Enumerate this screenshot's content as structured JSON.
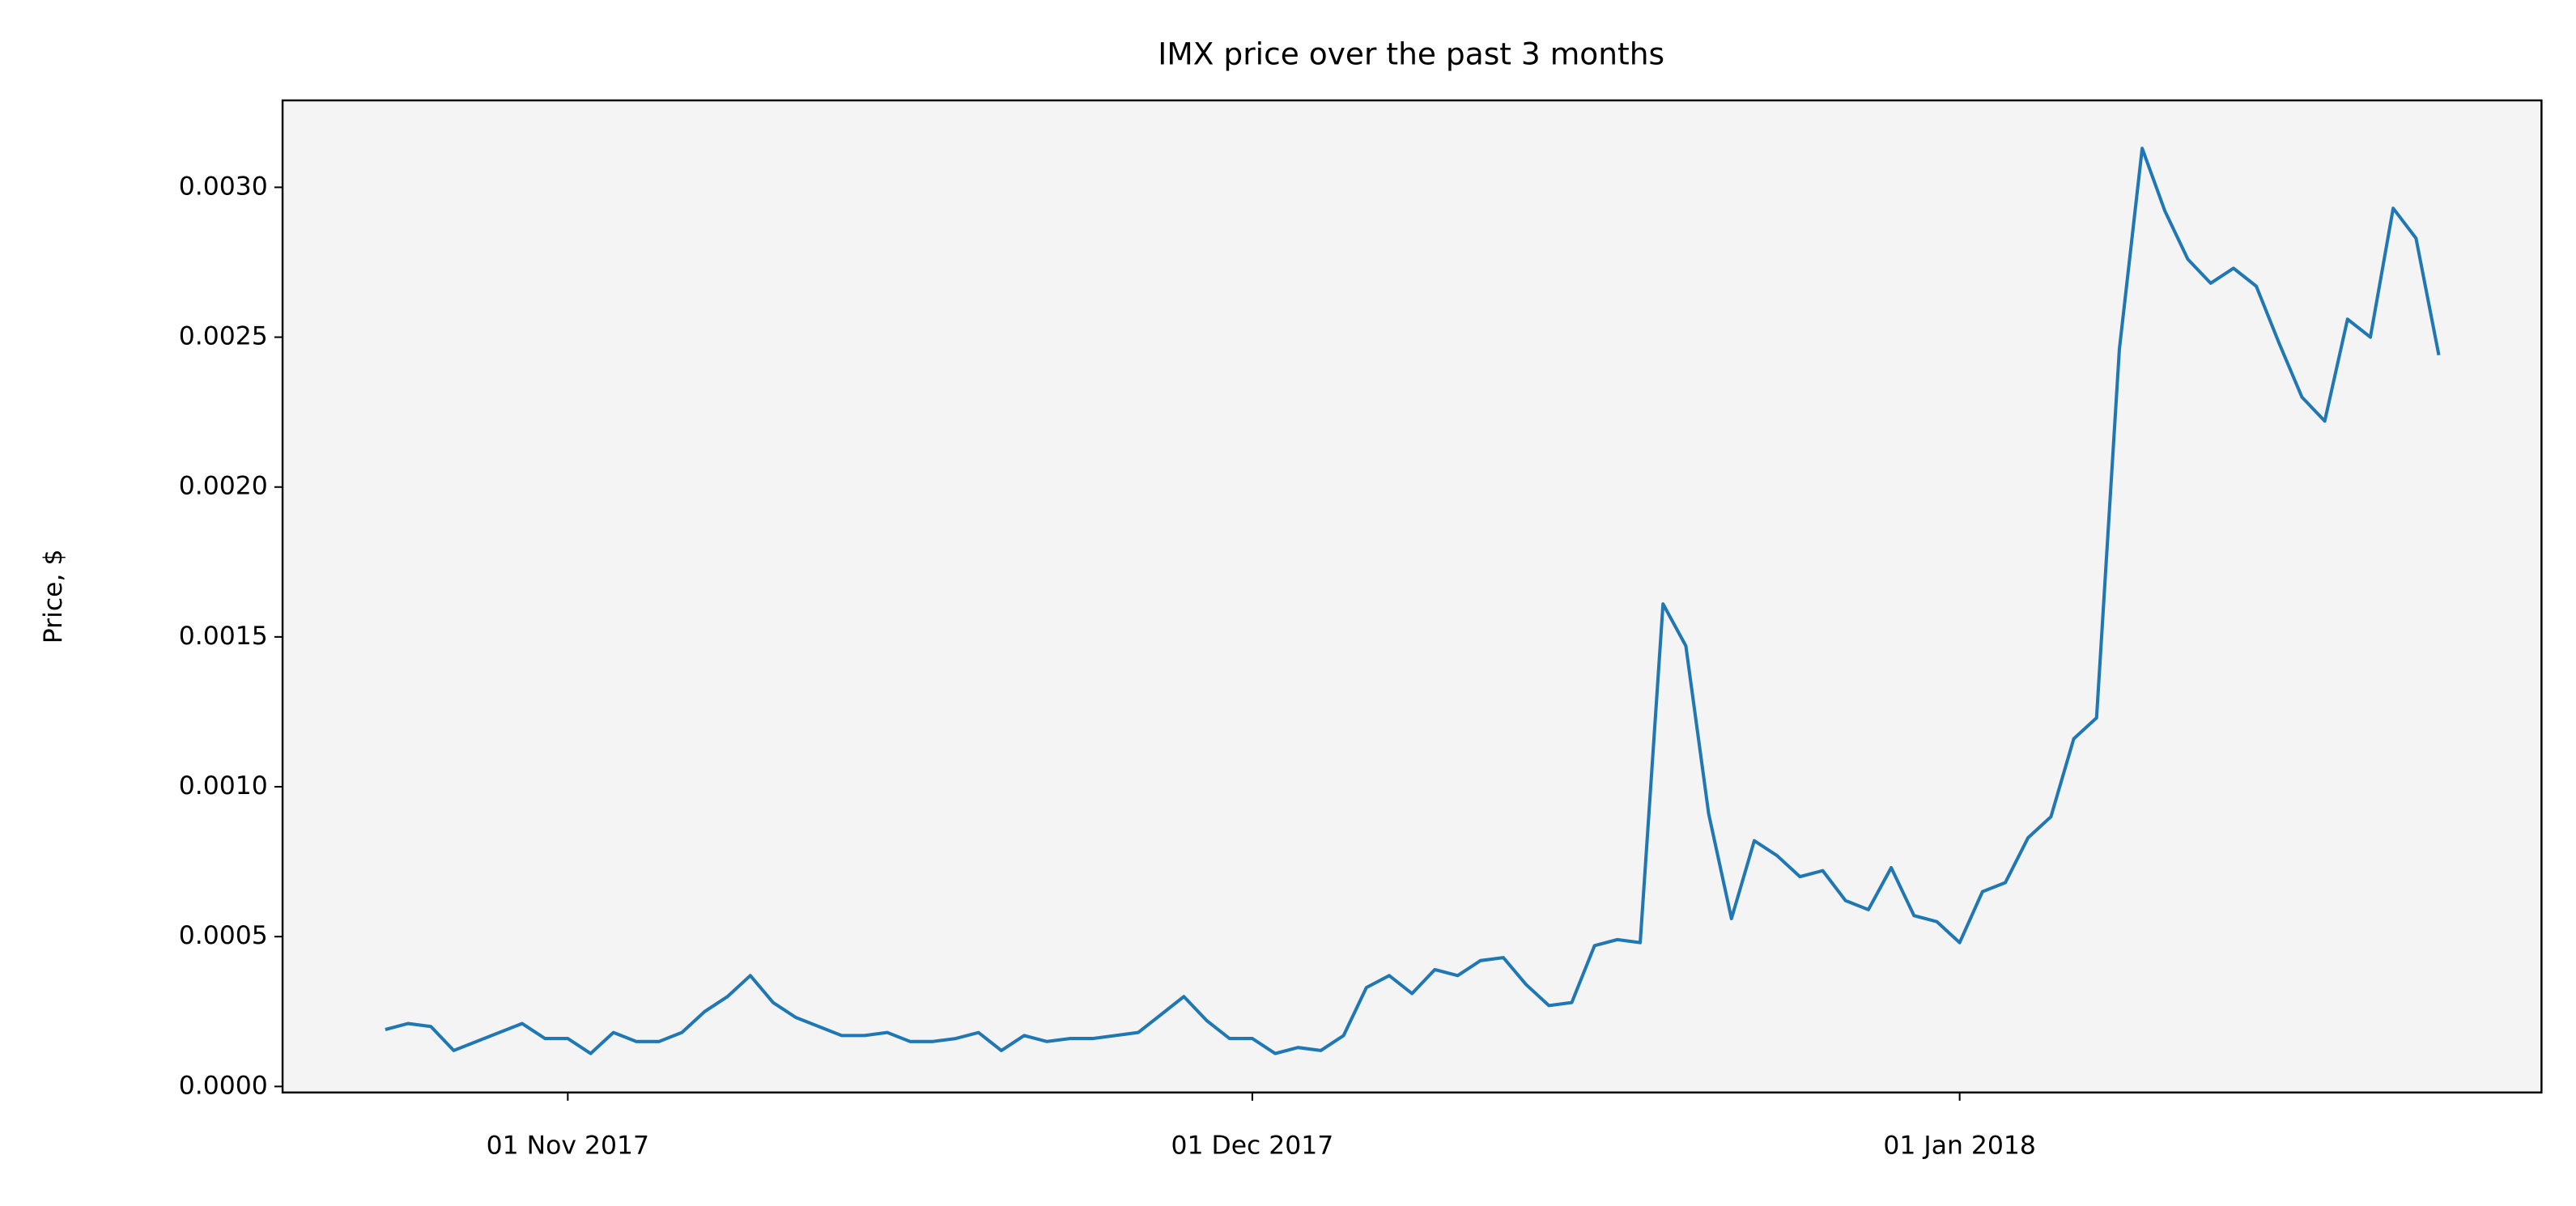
{
  "chart_data": {
    "type": "line",
    "title": "IMX price over the past 3 months",
    "ylabel": "Price, $",
    "x": [
      "2017-10-24",
      "2017-10-25",
      "2017-10-26",
      "2017-10-27",
      "2017-10-28",
      "2017-10-29",
      "2017-10-30",
      "2017-10-31",
      "2017-11-01",
      "2017-11-02",
      "2017-11-03",
      "2017-11-04",
      "2017-11-05",
      "2017-11-06",
      "2017-11-07",
      "2017-11-08",
      "2017-11-09",
      "2017-11-10",
      "2017-11-11",
      "2017-11-12",
      "2017-11-13",
      "2017-11-14",
      "2017-11-15",
      "2017-11-16",
      "2017-11-17",
      "2017-11-18",
      "2017-11-19",
      "2017-11-20",
      "2017-11-21",
      "2017-11-22",
      "2017-11-23",
      "2017-11-24",
      "2017-11-25",
      "2017-11-26",
      "2017-11-27",
      "2017-11-28",
      "2017-11-29",
      "2017-11-30",
      "2017-12-01",
      "2017-12-02",
      "2017-12-03",
      "2017-12-04",
      "2017-12-05",
      "2017-12-06",
      "2017-12-07",
      "2017-12-08",
      "2017-12-09",
      "2017-12-10",
      "2017-12-11",
      "2017-12-12",
      "2017-12-13",
      "2017-12-14",
      "2017-12-15",
      "2017-12-16",
      "2017-12-17",
      "2017-12-18",
      "2017-12-19",
      "2017-12-20",
      "2017-12-21",
      "2017-12-22",
      "2017-12-23",
      "2017-12-24",
      "2017-12-25",
      "2017-12-26",
      "2017-12-27",
      "2017-12-28",
      "2017-12-29",
      "2017-12-30",
      "2017-12-31",
      "2018-01-01",
      "2018-01-02",
      "2018-01-03",
      "2018-01-04",
      "2018-01-05",
      "2018-01-06",
      "2018-01-07",
      "2018-01-08",
      "2018-01-09",
      "2018-01-10",
      "2018-01-11",
      "2018-01-12",
      "2018-01-13",
      "2018-01-14",
      "2018-01-15",
      "2018-01-16",
      "2018-01-17",
      "2018-01-18",
      "2018-01-19",
      "2018-01-20",
      "2018-01-21",
      "2018-01-22"
    ],
    "series": [
      {
        "name": "IMX",
        "color": "#1f77b4",
        "values": [
          0.00019,
          0.00021,
          0.0002,
          0.00012,
          0.00015,
          0.00018,
          0.00021,
          0.00016,
          0.00016,
          0.00011,
          0.00018,
          0.00015,
          0.00015,
          0.00018,
          0.00025,
          0.0003,
          0.00037,
          0.00028,
          0.00023,
          0.0002,
          0.00017,
          0.00017,
          0.00018,
          0.00015,
          0.00015,
          0.00016,
          0.00018,
          0.00012,
          0.00017,
          0.00015,
          0.00016,
          0.00016,
          0.00017,
          0.00018,
          0.00024,
          0.0003,
          0.00022,
          0.00016,
          0.00016,
          0.00011,
          0.00013,
          0.00012,
          0.00017,
          0.00033,
          0.00037,
          0.00031,
          0.00039,
          0.00037,
          0.00042,
          0.00043,
          0.00034,
          0.00027,
          0.00028,
          0.00047,
          0.00049,
          0.00048,
          0.00161,
          0.00147,
          0.00091,
          0.00056,
          0.00082,
          0.00077,
          0.0007,
          0.00072,
          0.00062,
          0.00059,
          0.00073,
          0.00057,
          0.00055,
          0.00048,
          0.00065,
          0.00068,
          0.00083,
          0.0009,
          0.00116,
          0.00123,
          0.00246,
          0.00313,
          0.00292,
          0.00276,
          0.00268,
          0.00273,
          0.00267,
          0.00248,
          0.0023,
          0.00222,
          0.00256,
          0.0025,
          0.00293,
          0.00283,
          0.00244
        ]
      }
    ],
    "xlim": [
      "2017-10-19T12:00:00Z",
      "2018-01-26T12:00:00Z"
    ],
    "xticks": [
      {
        "value": "2017-11-01",
        "label": "01 Nov 2017"
      },
      {
        "value": "2017-12-01",
        "label": "01 Dec 2017"
      },
      {
        "value": "2018-01-01",
        "label": "01 Jan 2018"
      }
    ],
    "ylim": [
      -2e-05,
      0.00329
    ],
    "yticks": [
      {
        "value": 0,
        "label": "0.0000"
      },
      {
        "value": 0.0005,
        "label": "0.0005"
      },
      {
        "value": 0.001,
        "label": "0.0010"
      },
      {
        "value": 0.0015,
        "label": "0.0015"
      },
      {
        "value": 0.002,
        "label": "0.0020"
      },
      {
        "value": 0.0025,
        "label": "0.0025"
      },
      {
        "value": 0.003,
        "label": "0.0030"
      }
    ],
    "grid": false,
    "background": "#f4f4f4"
  }
}
